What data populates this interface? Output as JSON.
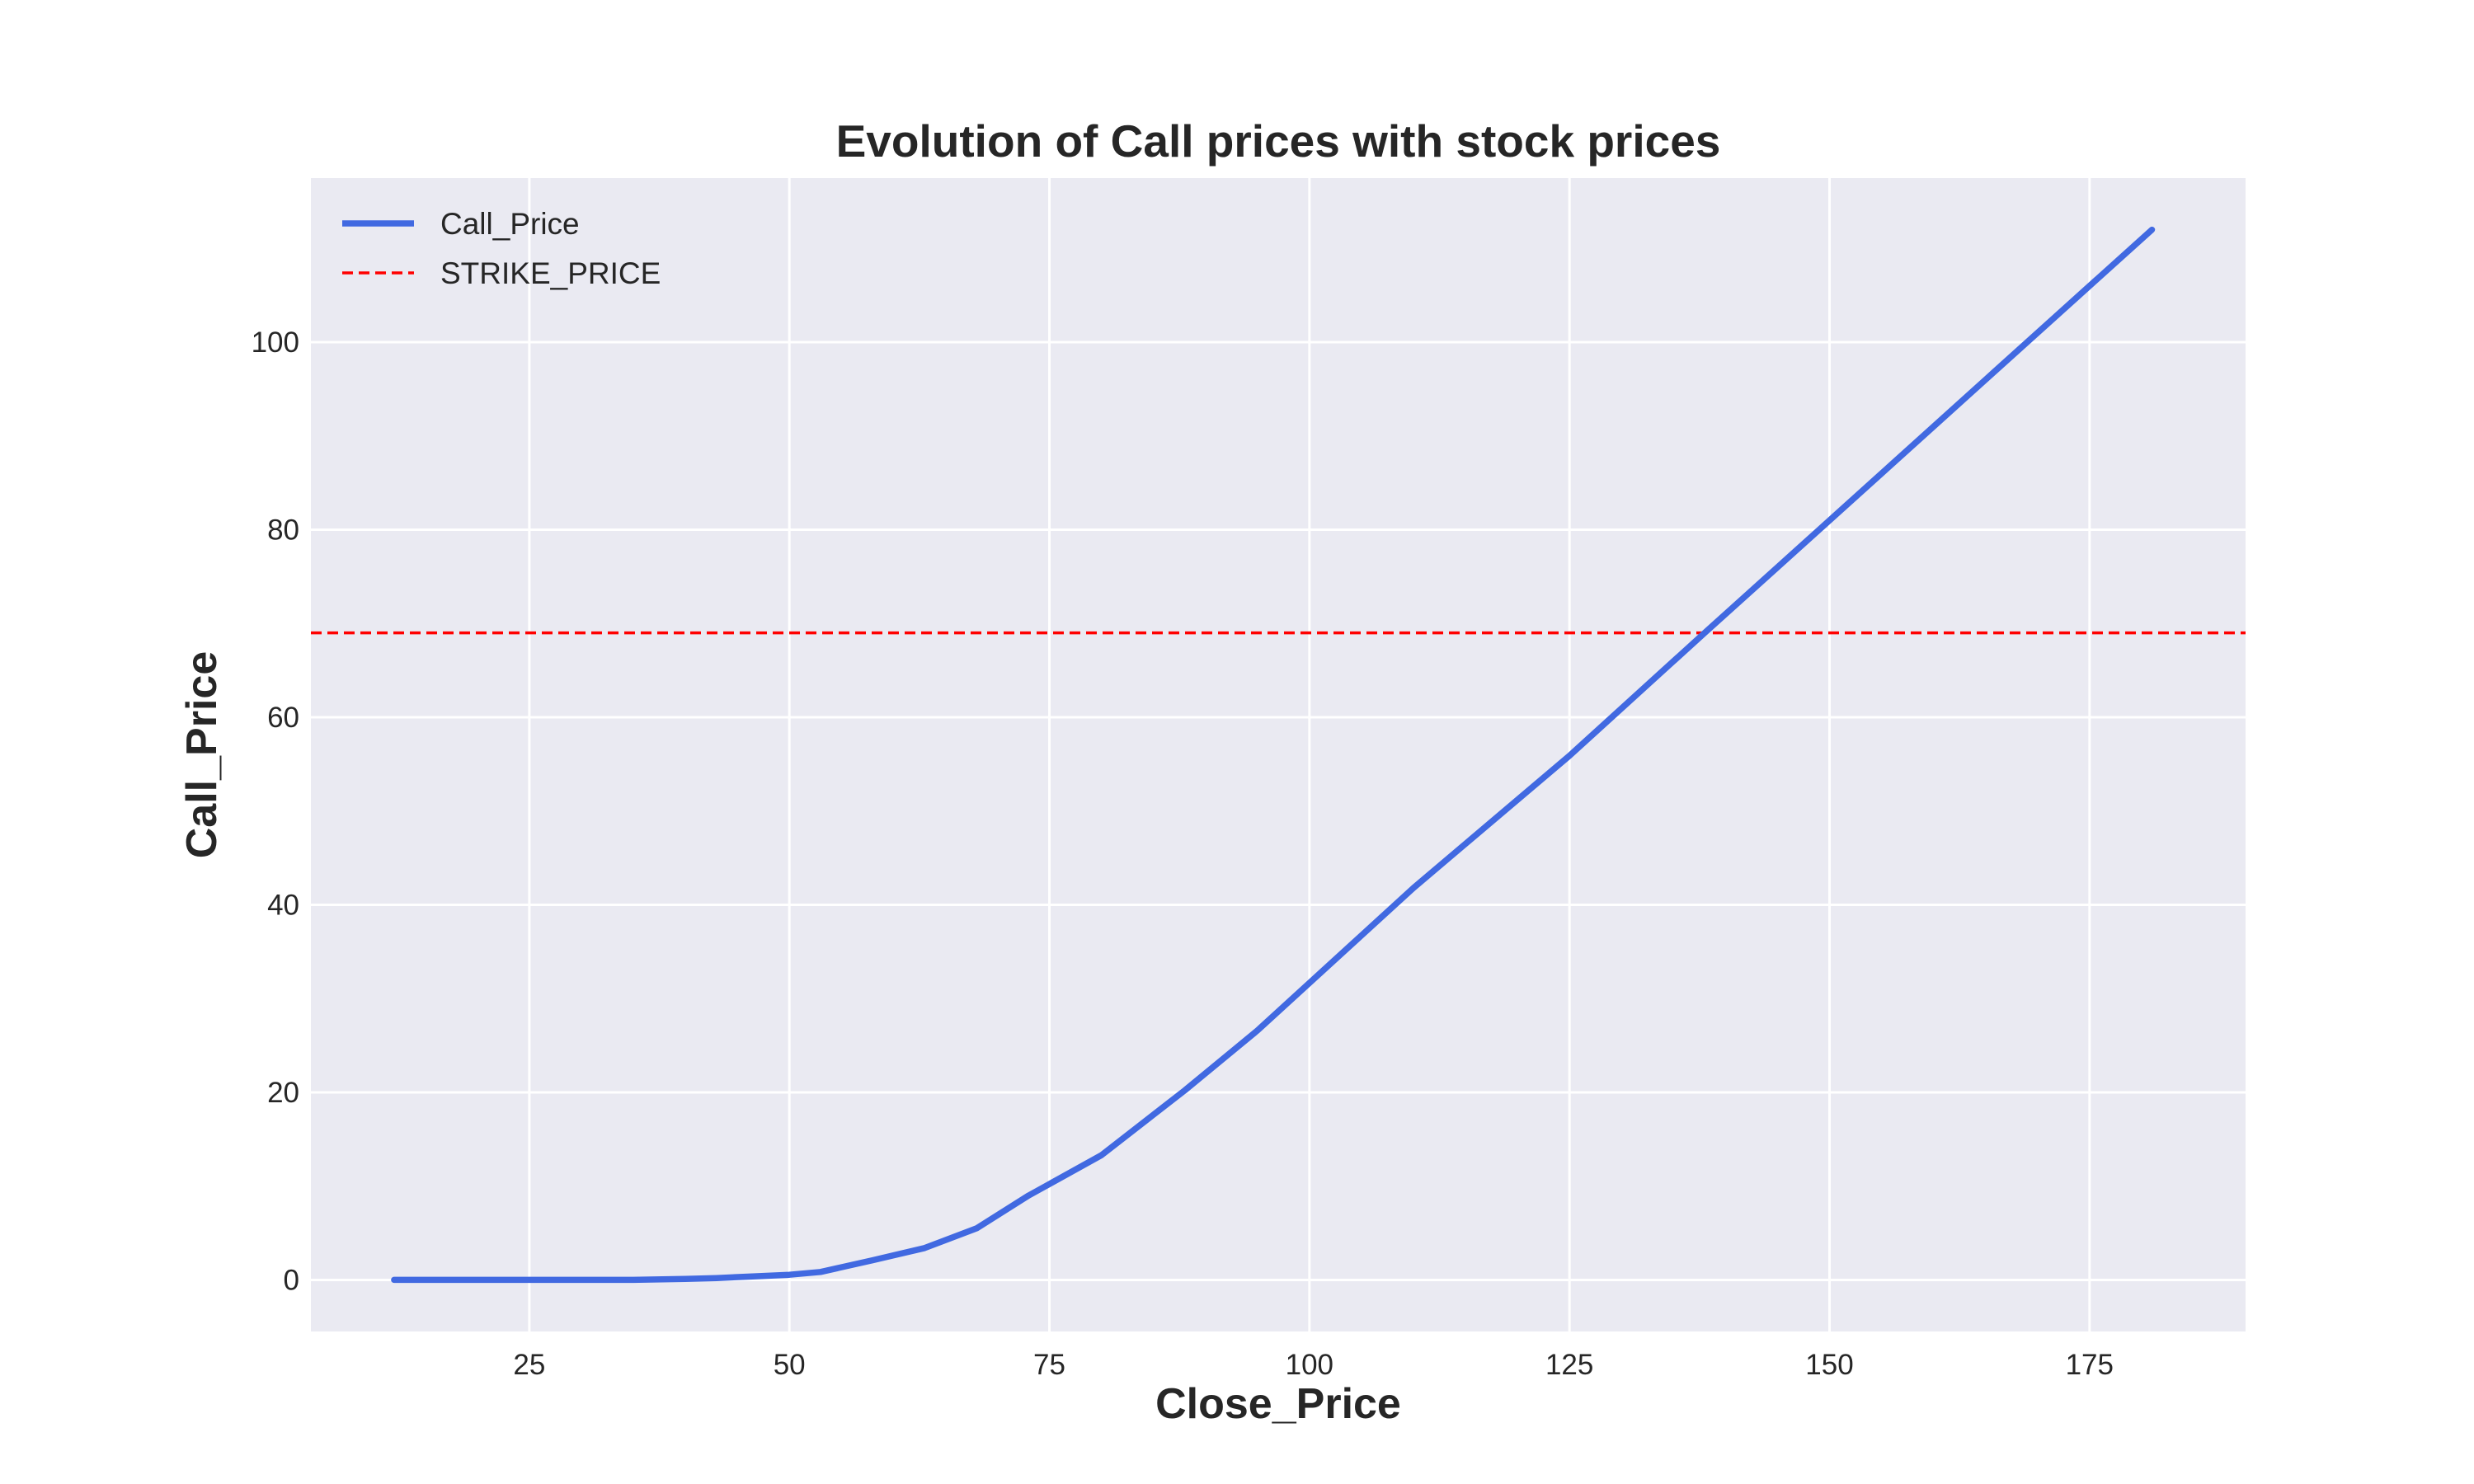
{
  "chart_data": {
    "type": "line",
    "title": "Evolution of Call prices with stock prices",
    "xlabel": "Close_Price",
    "ylabel": "Call_Price",
    "xlim": [
      4,
      190
    ],
    "ylim": [
      -5.5,
      117.5
    ],
    "xticks": [
      25,
      50,
      75,
      100,
      125,
      150,
      175
    ],
    "yticks": [
      0,
      20,
      40,
      60,
      80,
      100
    ],
    "grid": true,
    "legend_position": "top-left",
    "series": [
      {
        "name": "Call_Price",
        "color": "#4169e1",
        "style": "solid",
        "x": [
          12,
          20,
          30,
          35,
          40,
          43,
          46,
          50,
          53,
          58,
          63,
          68,
          73,
          80,
          88,
          95,
          110,
          125,
          138,
          150,
          165,
          181
        ],
        "y": [
          0,
          0,
          0,
          0,
          0.1,
          0.2,
          0.35,
          0.55,
          0.85,
          2.1,
          3.4,
          5.5,
          9.0,
          13.3,
          20.2,
          26.6,
          41.8,
          55.9,
          69.0,
          81.0,
          96.0,
          112.0
        ]
      }
    ],
    "reference_lines": [
      {
        "name": "STRIKE_PRICE",
        "color": "#ff0000",
        "style": "dashed",
        "orientation": "horizontal",
        "y": 69
      }
    ],
    "colors": {
      "plot_background": "#eaeaf2",
      "grid": "#ffffff",
      "text": "#262626"
    }
  }
}
